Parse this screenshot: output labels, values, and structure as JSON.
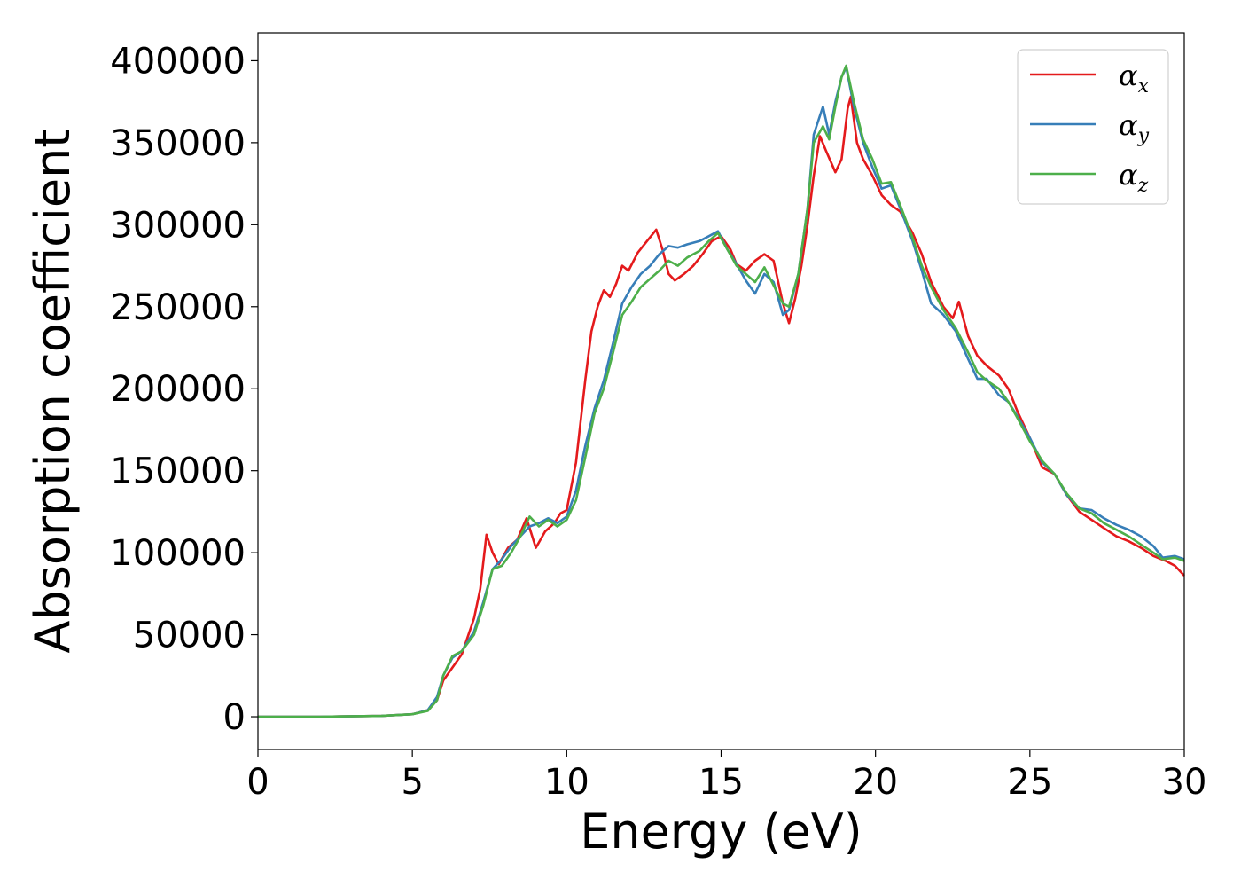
{
  "chart_data": {
    "type": "line",
    "title": "",
    "xlabel": "Energy (eV)",
    "ylabel": "Absorption coefficient",
    "xlim": [
      0,
      30
    ],
    "ylim": [
      -20000,
      417000
    ],
    "x_ticks": [
      0,
      5,
      10,
      15,
      20,
      25,
      30
    ],
    "y_ticks": [
      0,
      50000,
      100000,
      150000,
      200000,
      250000,
      300000,
      350000,
      400000
    ],
    "grid": false,
    "legend_position": "top-right",
    "series": [
      {
        "name": "α_x",
        "legend_base": "α",
        "legend_sub": "x",
        "color": "#e41a1c",
        "points": [
          [
            0,
            0
          ],
          [
            2,
            0
          ],
          [
            4,
            500
          ],
          [
            5,
            1500
          ],
          [
            5.5,
            4000
          ],
          [
            5.8,
            10000
          ],
          [
            6,
            22000
          ],
          [
            6.3,
            30000
          ],
          [
            6.6,
            38000
          ],
          [
            7,
            60000
          ],
          [
            7.2,
            78000
          ],
          [
            7.4,
            111000
          ],
          [
            7.6,
            100000
          ],
          [
            7.8,
            93000
          ],
          [
            8.1,
            103000
          ],
          [
            8.4,
            108000
          ],
          [
            8.7,
            121000
          ],
          [
            9.0,
            103000
          ],
          [
            9.3,
            113000
          ],
          [
            9.6,
            118000
          ],
          [
            9.8,
            124000
          ],
          [
            10.0,
            126000
          ],
          [
            10.3,
            155000
          ],
          [
            10.6,
            205000
          ],
          [
            10.8,
            235000
          ],
          [
            11.0,
            250000
          ],
          [
            11.2,
            260000
          ],
          [
            11.4,
            256000
          ],
          [
            11.6,
            264000
          ],
          [
            11.8,
            275000
          ],
          [
            12.0,
            272000
          ],
          [
            12.3,
            283000
          ],
          [
            12.6,
            290000
          ],
          [
            12.9,
            297000
          ],
          [
            13.1,
            285000
          ],
          [
            13.3,
            270000
          ],
          [
            13.5,
            266000
          ],
          [
            13.8,
            270000
          ],
          [
            14.1,
            275000
          ],
          [
            14.4,
            282000
          ],
          [
            14.7,
            290000
          ],
          [
            15.0,
            293000
          ],
          [
            15.3,
            285000
          ],
          [
            15.5,
            276000
          ],
          [
            15.8,
            272000
          ],
          [
            16.1,
            278000
          ],
          [
            16.4,
            282000
          ],
          [
            16.7,
            278000
          ],
          [
            17.0,
            252000
          ],
          [
            17.2,
            240000
          ],
          [
            17.4,
            255000
          ],
          [
            17.6,
            275000
          ],
          [
            17.8,
            300000
          ],
          [
            18.0,
            330000
          ],
          [
            18.2,
            354000
          ],
          [
            18.4,
            345000
          ],
          [
            18.7,
            332000
          ],
          [
            18.9,
            340000
          ],
          [
            19.1,
            371000
          ],
          [
            19.2,
            378000
          ],
          [
            19.4,
            350000
          ],
          [
            19.6,
            340000
          ],
          [
            19.9,
            330000
          ],
          [
            20.2,
            318000
          ],
          [
            20.5,
            312000
          ],
          [
            20.8,
            308000
          ],
          [
            21.2,
            295000
          ],
          [
            21.5,
            282000
          ],
          [
            21.8,
            265000
          ],
          [
            22.2,
            250000
          ],
          [
            22.5,
            243000
          ],
          [
            22.7,
            253000
          ],
          [
            23.0,
            232000
          ],
          [
            23.3,
            220000
          ],
          [
            23.6,
            214000
          ],
          [
            24.0,
            208000
          ],
          [
            24.3,
            200000
          ],
          [
            24.6,
            186000
          ],
          [
            25.0,
            170000
          ],
          [
            25.4,
            152000
          ],
          [
            25.8,
            148000
          ],
          [
            26.2,
            135000
          ],
          [
            26.6,
            125000
          ],
          [
            27.0,
            120000
          ],
          [
            27.4,
            115000
          ],
          [
            27.8,
            110000
          ],
          [
            28.2,
            107000
          ],
          [
            28.6,
            103000
          ],
          [
            29.0,
            98000
          ],
          [
            29.4,
            95000
          ],
          [
            29.7,
            92000
          ],
          [
            30.0,
            86000
          ]
        ]
      },
      {
        "name": "α_y",
        "legend_base": "α",
        "legend_sub": "y",
        "color": "#377eb8",
        "points": [
          [
            0,
            0
          ],
          [
            2,
            0
          ],
          [
            4,
            500
          ],
          [
            5,
            1500
          ],
          [
            5.5,
            4000
          ],
          [
            5.8,
            12000
          ],
          [
            6,
            25000
          ],
          [
            6.3,
            36000
          ],
          [
            6.6,
            40000
          ],
          [
            7,
            52000
          ],
          [
            7.3,
            70000
          ],
          [
            7.6,
            90000
          ],
          [
            7.9,
            96000
          ],
          [
            8.2,
            104000
          ],
          [
            8.5,
            110000
          ],
          [
            8.8,
            116000
          ],
          [
            9.1,
            118000
          ],
          [
            9.4,
            121000
          ],
          [
            9.7,
            118000
          ],
          [
            10.0,
            122000
          ],
          [
            10.3,
            138000
          ],
          [
            10.6,
            165000
          ],
          [
            10.9,
            188000
          ],
          [
            11.2,
            205000
          ],
          [
            11.5,
            228000
          ],
          [
            11.8,
            252000
          ],
          [
            12.1,
            262000
          ],
          [
            12.4,
            270000
          ],
          [
            12.7,
            275000
          ],
          [
            13.0,
            282000
          ],
          [
            13.3,
            287000
          ],
          [
            13.6,
            286000
          ],
          [
            13.9,
            288000
          ],
          [
            14.3,
            290000
          ],
          [
            14.6,
            293000
          ],
          [
            14.9,
            296000
          ],
          [
            15.2,
            285000
          ],
          [
            15.5,
            276000
          ],
          [
            15.8,
            266000
          ],
          [
            16.1,
            258000
          ],
          [
            16.4,
            270000
          ],
          [
            16.7,
            265000
          ],
          [
            17.0,
            245000
          ],
          [
            17.2,
            248000
          ],
          [
            17.5,
            270000
          ],
          [
            17.8,
            310000
          ],
          [
            18.0,
            355000
          ],
          [
            18.3,
            372000
          ],
          [
            18.5,
            355000
          ],
          [
            18.7,
            375000
          ],
          [
            18.9,
            390000
          ],
          [
            19.05,
            396000
          ],
          [
            19.3,
            372000
          ],
          [
            19.6,
            350000
          ],
          [
            19.9,
            335000
          ],
          [
            20.2,
            322000
          ],
          [
            20.5,
            324000
          ],
          [
            20.8,
            310000
          ],
          [
            21.2,
            290000
          ],
          [
            21.5,
            272000
          ],
          [
            21.8,
            252000
          ],
          [
            22.2,
            245000
          ],
          [
            22.6,
            235000
          ],
          [
            23.0,
            218000
          ],
          [
            23.3,
            206000
          ],
          [
            23.6,
            206000
          ],
          [
            24.0,
            196000
          ],
          [
            24.3,
            192000
          ],
          [
            24.6,
            183000
          ],
          [
            25.0,
            170000
          ],
          [
            25.4,
            155000
          ],
          [
            25.8,
            148000
          ],
          [
            26.2,
            135000
          ],
          [
            26.6,
            127000
          ],
          [
            27.0,
            126000
          ],
          [
            27.4,
            121000
          ],
          [
            27.8,
            117000
          ],
          [
            28.2,
            114000
          ],
          [
            28.6,
            110000
          ],
          [
            29.0,
            104000
          ],
          [
            29.3,
            97000
          ],
          [
            29.7,
            98000
          ],
          [
            30.0,
            96000
          ]
        ]
      },
      {
        "name": "α_z",
        "legend_base": "α",
        "legend_sub": "z",
        "color": "#4daf4a",
        "points": [
          [
            0,
            0
          ],
          [
            2,
            0
          ],
          [
            4,
            500
          ],
          [
            5,
            1500
          ],
          [
            5.5,
            3500
          ],
          [
            5.8,
            10000
          ],
          [
            6,
            25000
          ],
          [
            6.3,
            37000
          ],
          [
            6.6,
            40000
          ],
          [
            7,
            50000
          ],
          [
            7.3,
            68000
          ],
          [
            7.6,
            90000
          ],
          [
            7.9,
            92000
          ],
          [
            8.2,
            100000
          ],
          [
            8.5,
            110000
          ],
          [
            8.8,
            122000
          ],
          [
            9.1,
            116000
          ],
          [
            9.4,
            120000
          ],
          [
            9.7,
            116000
          ],
          [
            10.0,
            120000
          ],
          [
            10.3,
            132000
          ],
          [
            10.6,
            158000
          ],
          [
            10.9,
            185000
          ],
          [
            11.2,
            200000
          ],
          [
            11.5,
            222000
          ],
          [
            11.8,
            245000
          ],
          [
            12.1,
            253000
          ],
          [
            12.4,
            262000
          ],
          [
            12.7,
            267000
          ],
          [
            13.0,
            272000
          ],
          [
            13.3,
            278000
          ],
          [
            13.6,
            275000
          ],
          [
            13.9,
            280000
          ],
          [
            14.3,
            284000
          ],
          [
            14.6,
            290000
          ],
          [
            14.9,
            295000
          ],
          [
            15.2,
            285000
          ],
          [
            15.5,
            275000
          ],
          [
            15.8,
            270000
          ],
          [
            16.1,
            265000
          ],
          [
            16.4,
            274000
          ],
          [
            16.7,
            263000
          ],
          [
            17.0,
            252000
          ],
          [
            17.2,
            250000
          ],
          [
            17.5,
            270000
          ],
          [
            17.8,
            310000
          ],
          [
            18.0,
            350000
          ],
          [
            18.3,
            360000
          ],
          [
            18.5,
            352000
          ],
          [
            18.7,
            372000
          ],
          [
            18.9,
            390000
          ],
          [
            19.05,
            397000
          ],
          [
            19.3,
            375000
          ],
          [
            19.6,
            352000
          ],
          [
            19.9,
            340000
          ],
          [
            20.2,
            325000
          ],
          [
            20.5,
            326000
          ],
          [
            20.8,
            312000
          ],
          [
            21.2,
            292000
          ],
          [
            21.5,
            275000
          ],
          [
            21.8,
            262000
          ],
          [
            22.2,
            248000
          ],
          [
            22.6,
            237000
          ],
          [
            23.0,
            222000
          ],
          [
            23.3,
            210000
          ],
          [
            23.6,
            205000
          ],
          [
            24.0,
            200000
          ],
          [
            24.3,
            192000
          ],
          [
            24.6,
            182000
          ],
          [
            25.0,
            168000
          ],
          [
            25.4,
            156000
          ],
          [
            25.8,
            148000
          ],
          [
            26.2,
            136000
          ],
          [
            26.6,
            127000
          ],
          [
            27.0,
            124000
          ],
          [
            27.4,
            118000
          ],
          [
            27.8,
            114000
          ],
          [
            28.2,
            110000
          ],
          [
            28.6,
            105000
          ],
          [
            29.0,
            100000
          ],
          [
            29.3,
            96000
          ],
          [
            29.7,
            97000
          ],
          [
            30.0,
            95000
          ]
        ]
      }
    ]
  }
}
